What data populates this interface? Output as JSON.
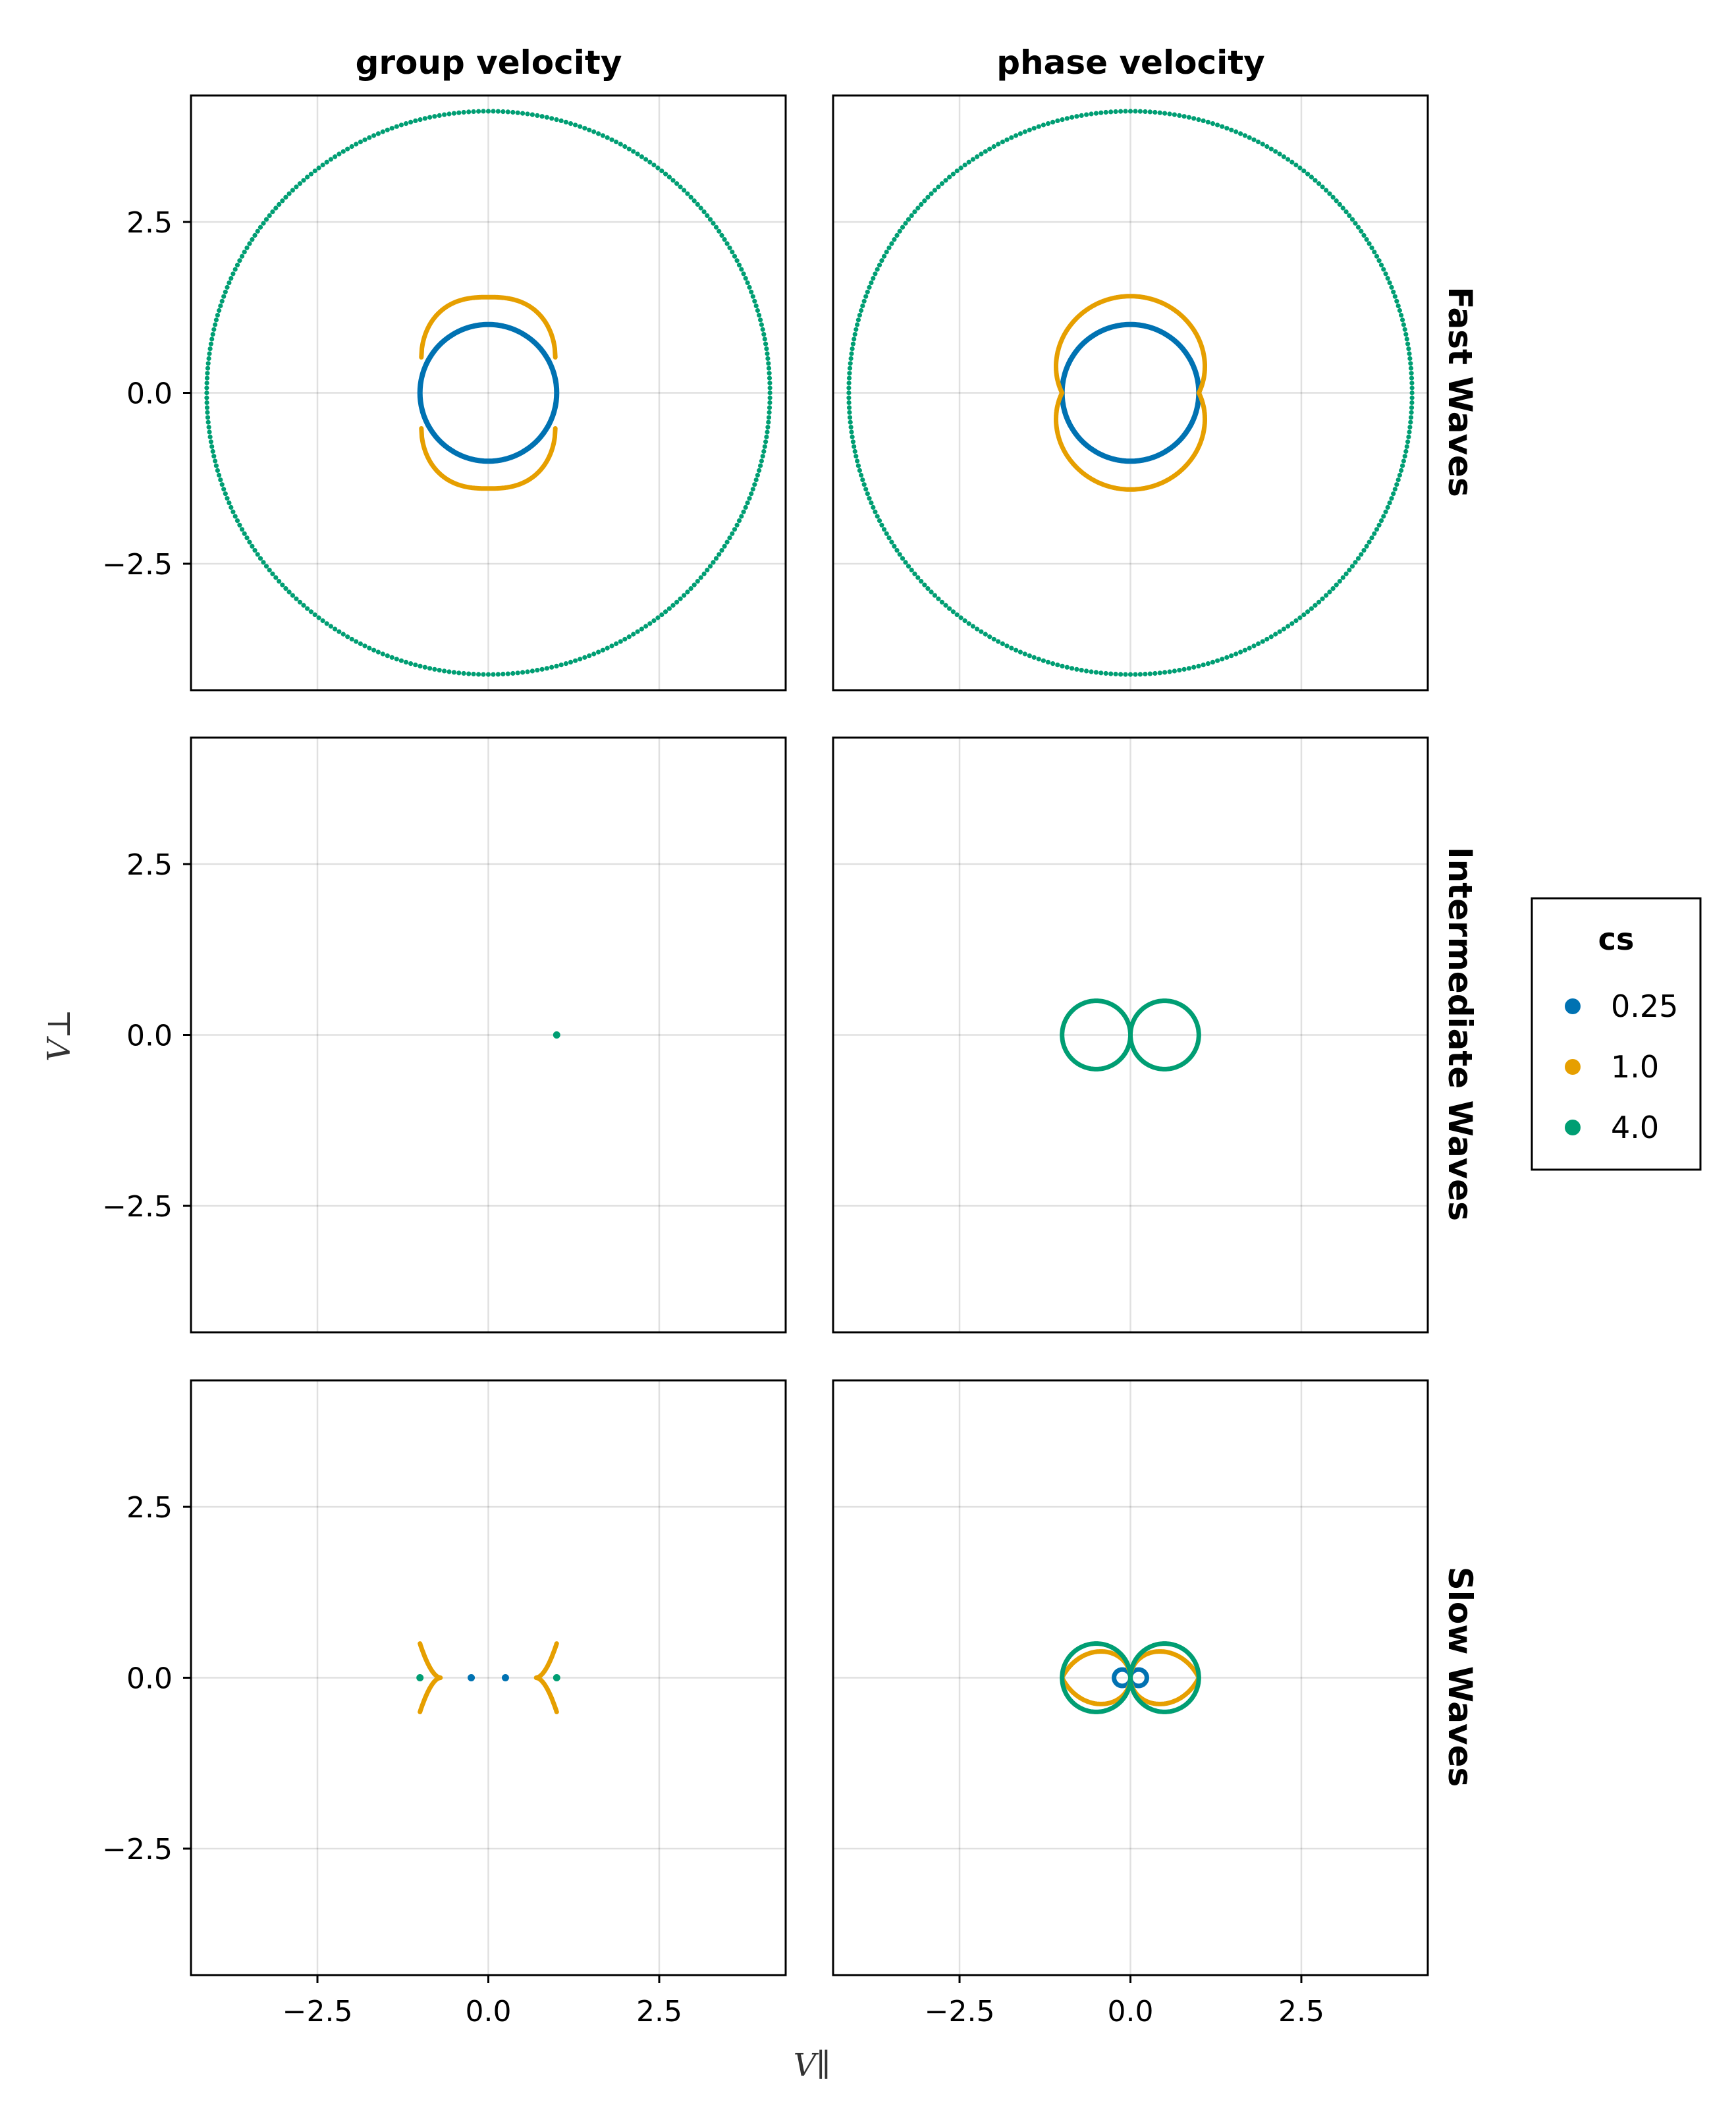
{
  "chart_data": {
    "type": "scatter",
    "title": "",
    "column_titles": [
      "group velocity",
      "phase velocity"
    ],
    "row_titles": [
      "Fast Waves",
      "Intermediate Waves",
      "Slow Waves"
    ],
    "xlabel": "V∥",
    "ylabel": "V⊥",
    "xlim": [
      -4.35,
      4.35
    ],
    "ylim": [
      -4.35,
      4.35
    ],
    "xticks": [
      -2.5,
      0.0,
      2.5
    ],
    "yticks": [
      -2.5,
      0.0,
      2.5
    ],
    "xtick_labels": [
      "−2.5",
      "0.0",
      "2.5"
    ],
    "ytick_labels": [
      "2.5",
      "0.0",
      "−2.5"
    ],
    "grid": true,
    "legend": {
      "title": "cs",
      "position": "right",
      "entries": [
        {
          "label": "0.25",
          "color": "#0072B2"
        },
        {
          "label": "1.0",
          "color": "#E69F00"
        },
        {
          "label": "4.0",
          "color": "#009E73"
        }
      ]
    },
    "series_note_cs_values": [
      0.25,
      1.0,
      4.0
    ],
    "panels": [
      {
        "row": "Fast Waves",
        "column": "group velocity",
        "series": [
          {
            "cs": 0.25,
            "shape": "circle",
            "radius": 1.0
          },
          {
            "cs": 1.0,
            "shape": "fast-group",
            "va": 1.0
          },
          {
            "cs": 4.0,
            "shape": "dotted-circle",
            "radius": 4.12
          }
        ]
      },
      {
        "row": "Fast Waves",
        "column": "phase velocity",
        "series": [
          {
            "cs": 0.25,
            "shape": "circle",
            "radius": 1.0
          },
          {
            "cs": 1.0,
            "shape": "fast-phase",
            "va": 1.0
          },
          {
            "cs": 4.0,
            "shape": "dotted-circle",
            "radius": 4.12
          }
        ]
      },
      {
        "row": "Intermediate Waves",
        "column": "group velocity",
        "series": [
          {
            "cs": 4.0,
            "shape": "points",
            "points": [
              [
                1.0,
                0.0
              ]
            ]
          }
        ]
      },
      {
        "row": "Intermediate Waves",
        "column": "phase velocity",
        "series": [
          {
            "cs": 4.0,
            "shape": "double-circle",
            "offset": 0.5,
            "radius": 0.5
          }
        ]
      },
      {
        "row": "Slow Waves",
        "column": "group velocity",
        "series": [
          {
            "cs": 0.25,
            "shape": "points",
            "points": [
              [
                -0.25,
                0.0
              ],
              [
                0.25,
                0.0
              ]
            ]
          },
          {
            "cs": 1.0,
            "shape": "slow-group-cusps",
            "x_outer": 1.0,
            "x_inner": 0.7,
            "y_max": 0.5
          },
          {
            "cs": 4.0,
            "shape": "points",
            "points": [
              [
                -1.0,
                0.0
              ],
              [
                1.0,
                0.0
              ]
            ]
          }
        ]
      },
      {
        "row": "Slow Waves",
        "column": "phase velocity",
        "series": [
          {
            "cs": 0.25,
            "shape": "double-circle",
            "offset": 0.12,
            "radius": 0.12
          },
          {
            "cs": 1.0,
            "shape": "slow-phase",
            "va": 1.0
          },
          {
            "cs": 4.0,
            "shape": "double-circle",
            "offset": 0.5,
            "radius": 0.5
          }
        ]
      }
    ]
  }
}
